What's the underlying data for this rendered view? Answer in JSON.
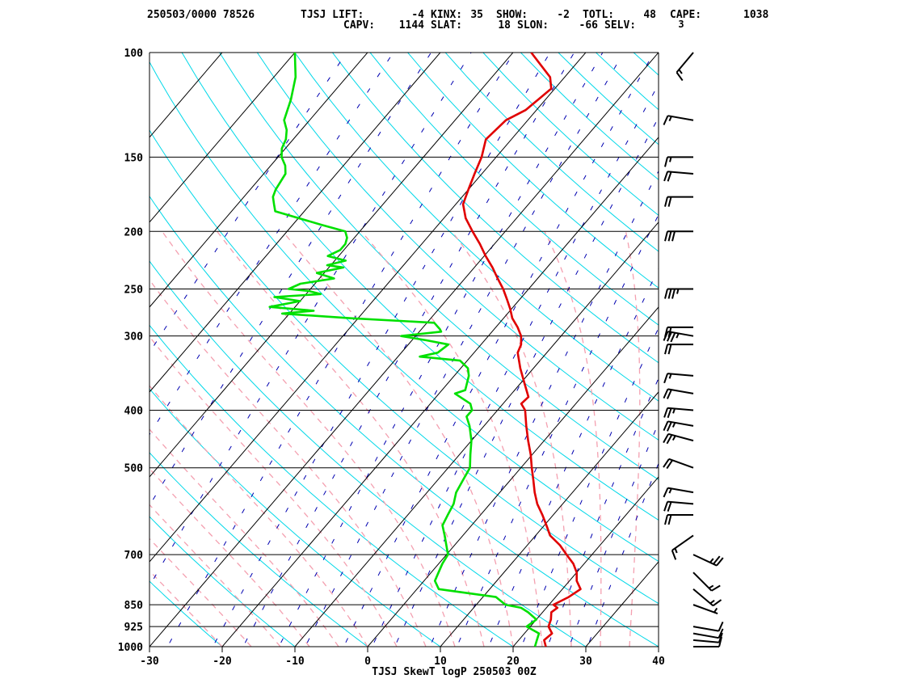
{
  "header": {
    "row1": [
      {
        "text": "250503/0000 78526"
      },
      {
        "text": "TJSJ  LIFT:"
      },
      {
        "text": "-4"
      },
      {
        "text": "KINX:"
      },
      {
        "text": "35"
      },
      {
        "text": "SHOW:"
      },
      {
        "text": "-2"
      },
      {
        "text": "TOTL:"
      },
      {
        "text": "48"
      },
      {
        "text": "CAPE:"
      },
      {
        "text": "1038"
      }
    ],
    "row2": [
      {
        "text": "CAPV:"
      },
      {
        "text": "1144"
      },
      {
        "text": "SLAT:"
      },
      {
        "text": "18"
      },
      {
        "text": "SLON:"
      },
      {
        "text": "-66"
      },
      {
        "text": "SELV:"
      },
      {
        "text": "3"
      }
    ]
  },
  "colors": {
    "temperature": "#e00000",
    "dewpoint": "#00e000",
    "dry_adiabat": "#00d8e8",
    "moist_adiabat": "#f4a0b0",
    "mixing_ratio": "#0000b0",
    "isobar": "#000000",
    "isotherm": "#000000",
    "barb": "#000000"
  },
  "chart_data": {
    "type": "line",
    "title": "TJSJ SkewT logP 250503 00Z",
    "xlabel": "",
    "ylabel": "",
    "x_axis": "temperature",
    "y_axis": "pressure (log)",
    "xlim": [
      -30,
      40
    ],
    "ylim": [
      1000,
      100
    ],
    "log_y": true,
    "grid": true,
    "x_ticks": [
      "-30",
      "-20",
      "-10",
      "0",
      "10",
      "20",
      "30",
      "40"
    ],
    "y_ticks": [
      "100",
      "150",
      "200",
      "250",
      "300",
      "400",
      "500",
      "700",
      "850",
      "925",
      "1000"
    ],
    "series": [
      {
        "key": "temperature",
        "points": [
          [
            1000,
            24.5
          ],
          [
            975,
            23.5
          ],
          [
            950,
            23.8
          ],
          [
            925,
            22.5
          ],
          [
            900,
            22.0
          ],
          [
            875,
            21.2
          ],
          [
            860,
            21.5
          ],
          [
            850,
            20.6
          ],
          [
            825,
            21.8
          ],
          [
            800,
            22.5
          ],
          [
            775,
            21.0
          ],
          [
            750,
            20.0
          ],
          [
            725,
            18.5
          ],
          [
            700,
            16.5
          ],
          [
            675,
            14.5
          ],
          [
            650,
            12.0
          ],
          [
            625,
            10.3
          ],
          [
            600,
            8.5
          ],
          [
            575,
            6.5
          ],
          [
            550,
            4.8
          ],
          [
            525,
            3.2
          ],
          [
            500,
            1.5
          ],
          [
            475,
            -0.2
          ],
          [
            450,
            -2.2
          ],
          [
            425,
            -4.2
          ],
          [
            400,
            -6.2
          ],
          [
            390,
            -7.5
          ],
          [
            380,
            -7.3
          ],
          [
            360,
            -9.5
          ],
          [
            340,
            -11.8
          ],
          [
            320,
            -14.0
          ],
          [
            310,
            -14.5
          ],
          [
            300,
            -15.5
          ],
          [
            290,
            -17.0
          ],
          [
            280,
            -18.8
          ],
          [
            270,
            -20.2
          ],
          [
            260,
            -21.8
          ],
          [
            250,
            -23.5
          ],
          [
            240,
            -25.5
          ],
          [
            230,
            -27.5
          ],
          [
            220,
            -29.8
          ],
          [
            210,
            -32.0
          ],
          [
            200,
            -34.5
          ],
          [
            190,
            -37.0
          ],
          [
            180,
            -39.0
          ],
          [
            170,
            -40.0
          ],
          [
            160,
            -41.0
          ],
          [
            150,
            -42.0
          ],
          [
            140,
            -43.5
          ],
          [
            130,
            -43.0
          ],
          [
            125,
            -41.5
          ],
          [
            120,
            -41.0
          ],
          [
            115,
            -40.5
          ],
          [
            110,
            -42.0
          ],
          [
            100,
            -47.5
          ]
        ]
      },
      {
        "key": "dewpoint",
        "points": [
          [
            1000,
            23.0
          ],
          [
            975,
            22.5
          ],
          [
            950,
            22.0
          ],
          [
            925,
            19.5
          ],
          [
            900,
            20.0
          ],
          [
            875,
            18.0
          ],
          [
            860,
            16.5
          ],
          [
            850,
            14.0
          ],
          [
            825,
            11.8
          ],
          [
            800,
            3.0
          ],
          [
            775,
            1.5
          ],
          [
            750,
            1.0
          ],
          [
            725,
            0.5
          ],
          [
            700,
            0.2
          ],
          [
            650,
            -2.5
          ],
          [
            625,
            -4.0
          ],
          [
            600,
            -4.5
          ],
          [
            575,
            -5.0
          ],
          [
            550,
            -6.0
          ],
          [
            525,
            -6.5
          ],
          [
            500,
            -7.0
          ],
          [
            475,
            -8.5
          ],
          [
            450,
            -10.0
          ],
          [
            425,
            -12.0
          ],
          [
            410,
            -13.5
          ],
          [
            400,
            -13.5
          ],
          [
            390,
            -14.5
          ],
          [
            375,
            -17.8
          ],
          [
            370,
            -16.8
          ],
          [
            350,
            -18.0
          ],
          [
            340,
            -19.0
          ],
          [
            330,
            -21.0
          ],
          [
            325,
            -27.0
          ],
          [
            320,
            -25.0
          ],
          [
            310,
            -24.5
          ],
          [
            305,
            -28.0
          ],
          [
            300,
            -32.0
          ],
          [
            295,
            -27.0
          ],
          [
            292,
            -27.5
          ],
          [
            285,
            -29.0
          ],
          [
            280,
            -41.0
          ],
          [
            275,
            -51.0
          ],
          [
            272,
            -47.0
          ],
          [
            268,
            -53.5
          ],
          [
            262,
            -50.0
          ],
          [
            258,
            -54.0
          ],
          [
            255,
            -48.0
          ],
          [
            252,
            -50.0
          ],
          [
            250,
            -53.0
          ],
          [
            245,
            -52.0
          ],
          [
            240,
            -48.0
          ],
          [
            235,
            -51.0
          ],
          [
            230,
            -48.0
          ],
          [
            228,
            -50.5
          ],
          [
            224,
            -48.5
          ],
          [
            220,
            -51.5
          ],
          [
            215,
            -50.5
          ],
          [
            210,
            -50.5
          ],
          [
            205,
            -51.0
          ],
          [
            200,
            -52.0
          ],
          [
            195,
            -56.0
          ],
          [
            185,
            -64.0
          ],
          [
            180,
            -65.0
          ],
          [
            175,
            -66.0
          ],
          [
            170,
            -66.5
          ],
          [
            160,
            -67.0
          ],
          [
            155,
            -68.0
          ],
          [
            150,
            -69.5
          ],
          [
            145,
            -70.5
          ],
          [
            140,
            -71.0
          ],
          [
            135,
            -72.0
          ],
          [
            130,
            -73.5
          ],
          [
            120,
            -75.0
          ],
          [
            110,
            -77.0
          ],
          [
            100,
            -80.0
          ]
        ]
      }
    ],
    "barb_labels": [
      "3"
    ]
  },
  "footer": {
    "title": "TJSJ SkewT logP 250503 00Z"
  }
}
